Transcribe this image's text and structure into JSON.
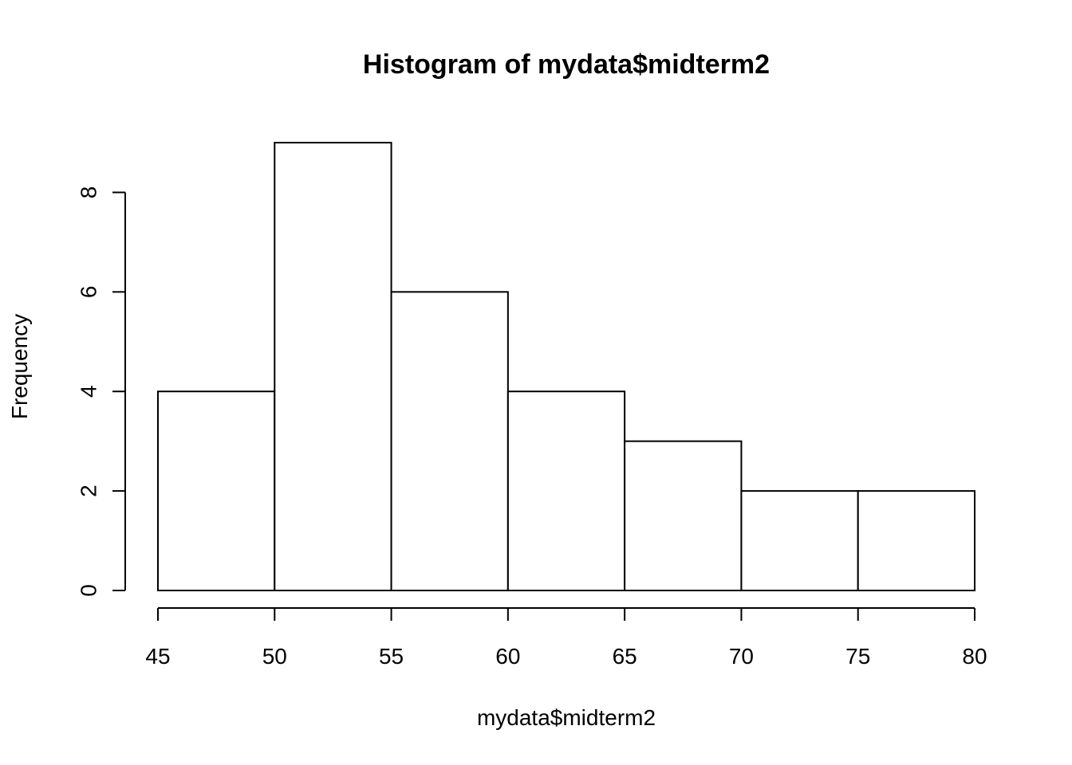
{
  "chart_data": {
    "type": "bar",
    "title": "Histogram of mydata$midterm2",
    "xlabel": "mydata$midterm2",
    "ylabel": "Frequency",
    "bins": [
      {
        "start": 45,
        "end": 50,
        "count": 4
      },
      {
        "start": 50,
        "end": 55,
        "count": 9
      },
      {
        "start": 55,
        "end": 60,
        "count": 6
      },
      {
        "start": 60,
        "end": 65,
        "count": 4
      },
      {
        "start": 65,
        "end": 70,
        "count": 3
      },
      {
        "start": 70,
        "end": 75,
        "count": 2
      },
      {
        "start": 75,
        "end": 80,
        "count": 2
      }
    ],
    "x_ticks": [
      45,
      50,
      55,
      60,
      65,
      70,
      75,
      80
    ],
    "y_ticks": [
      0,
      2,
      4,
      6,
      8
    ],
    "xlim": [
      45,
      80
    ],
    "ylim": [
      0,
      9
    ],
    "grid": false,
    "colors": {
      "bar_fill": "#ffffff",
      "bar_stroke": "#000000"
    }
  }
}
